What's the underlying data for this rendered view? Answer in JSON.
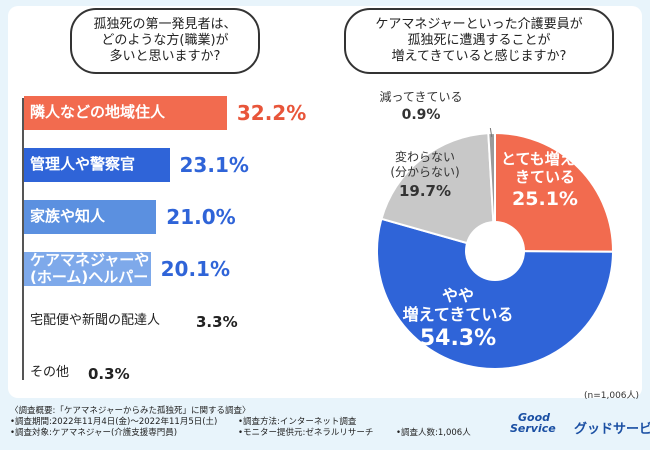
{
  "left_question": {
    "lines": [
      "孤独死の第一発見者は、",
      "どのような方(職業)が",
      "多いと思いますか?"
    ]
  },
  "right_question": {
    "lines": [
      "ケアマネジャーといった介護要員が",
      "孤独死に遭遇することが",
      "増えてきていると感じますか?"
    ]
  },
  "sample_size": "(n=1,006人)",
  "colors": {
    "red": "#f26b4f",
    "blue": "#2f64d8",
    "lightblue": "#5b90e0",
    "lighterblue": "#7ea9ea",
    "gray": "#c8c8c8",
    "text_red": "#e8553a",
    "text_blue": "#2f64d8"
  },
  "chart_data": [
    {
      "type": "bar",
      "orientation": "horizontal",
      "title": "孤独死の第一発見者は、どのような方(職業)が多いと思いますか?",
      "categories": [
        "隣人などの地域住人",
        "管理人や警察官",
        "家族や知人",
        "ケアマネジャーや(ホーム)ヘルパー",
        "宅配便や新聞の配達人",
        "その他"
      ],
      "label_lines": [
        [
          "隣人などの地域住人"
        ],
        [
          "管理人や警察官"
        ],
        [
          "家族や知人"
        ],
        [
          "ケアマネジャーや",
          "(ホーム)ヘルパー"
        ],
        [
          "宅配便や新聞の配達人"
        ],
        [
          "その他"
        ]
      ],
      "values": [
        32.2,
        23.1,
        21.0,
        20.1,
        3.3,
        0.3
      ],
      "value_labels": [
        "32.2%",
        "23.1%",
        "21.0%",
        "20.1%",
        "3.3%",
        "0.3%"
      ],
      "unit": "%"
    },
    {
      "type": "pie",
      "title": "ケアマネジャーといった介護要員が孤独死に遭遇することが増えてきていると感じますか?",
      "labels": [
        "とても増えてきている",
        "やや増えてきている",
        "変わらない(分からない)",
        "減ってきている"
      ],
      "label_lines": [
        [
          "とても増えて",
          "きている"
        ],
        [
          "やや",
          "増えてきている"
        ],
        [
          "変わらない",
          "(分からない)"
        ],
        [
          "減ってきている"
        ]
      ],
      "values": [
        25.1,
        54.3,
        19.7,
        0.9
      ],
      "value_labels": [
        "25.1%",
        "54.3%",
        "19.7%",
        "0.9%"
      ],
      "unit": "%"
    }
  ],
  "footer": {
    "overview": "〈調査概要:「ケアマネジャーからみた孤独死」に関する調査〉",
    "period": "•調査期間:2022年11月4日(金)〜2022年11月5日(土)",
    "method": "•調査方法:インターネット調査",
    "target": "•調査対象:ケアマネジャー(介護支援専門員)",
    "provider": "•モニター提供元:ゼネラルリサーチ",
    "count": "•調査人数:1,006人"
  },
  "logo": {
    "mark_top": "Good",
    "mark_bottom": "Service",
    "text": "グッドサービス"
  }
}
